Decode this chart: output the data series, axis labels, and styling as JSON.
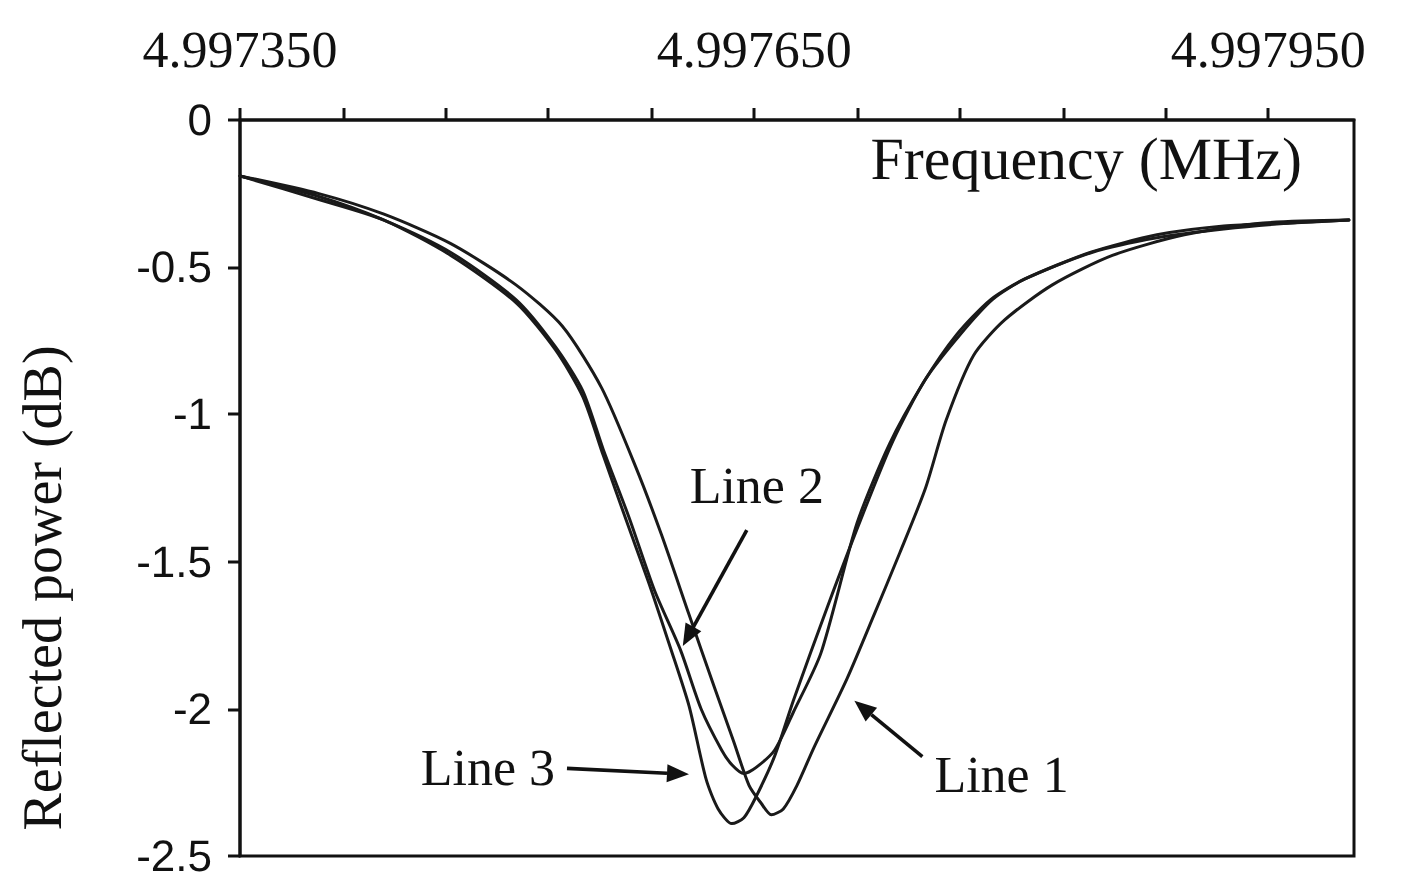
{
  "chart_data": {
    "type": "line",
    "xlabel": "Frequency (MHz)",
    "ylabel": "Reflected power (dB)",
    "xlim": [
      4.99735,
      4.998
    ],
    "xticks": [
      {
        "value": 4.99735,
        "label": "4.997350"
      },
      {
        "value": 4.99741,
        "label": null
      },
      {
        "value": 4.99747,
        "label": null
      },
      {
        "value": 4.99753,
        "label": null
      },
      {
        "value": 4.99759,
        "label": null
      },
      {
        "value": 4.99765,
        "label": "4.997650"
      },
      {
        "value": 4.99771,
        "label": null
      },
      {
        "value": 4.99777,
        "label": null
      },
      {
        "value": 4.99783,
        "label": null
      },
      {
        "value": 4.99789,
        "label": null
      },
      {
        "value": 4.99795,
        "label": "4.997950"
      }
    ],
    "ylim": [
      -2.5,
      0
    ],
    "yticks": [
      0,
      -0.5,
      -1,
      -1.5,
      -2,
      -2.5
    ],
    "line_style": "solid",
    "series": [
      {
        "name": "Line 1",
        "color": "#1a1a1a",
        "x": [
          4.99735,
          4.997396,
          4.997434,
          4.997473,
          4.997511,
          4.997538,
          4.997561,
          4.997581,
          4.997596,
          4.997612,
          4.997627,
          4.997638,
          4.997647,
          4.997654,
          4.99766,
          4.997667,
          4.997675,
          4.997685,
          4.997704,
          4.99772,
          4.997735,
          4.99775,
          4.997762,
          4.997778,
          4.997796,
          4.997824,
          4.997859,
          4.997901,
          4.997947,
          4.997997
        ],
        "values": [
          -0.19,
          -0.25,
          -0.32,
          -0.42,
          -0.56,
          -0.7,
          -0.91,
          -1.18,
          -1.41,
          -1.68,
          -1.93,
          -2.11,
          -2.26,
          -2.32,
          -2.36,
          -2.34,
          -2.26,
          -2.13,
          -1.9,
          -1.68,
          -1.47,
          -1.25,
          -1.02,
          -0.8,
          -0.68,
          -0.56,
          -0.46,
          -0.39,
          -0.35,
          -0.34
        ]
      },
      {
        "name": "Line 2",
        "color": "#1a1a1a",
        "x": [
          4.99735,
          4.997396,
          4.997434,
          4.997473,
          4.997511,
          4.997534,
          4.99755,
          4.997562,
          4.997577,
          4.997592,
          4.997607,
          4.997619,
          4.997631,
          4.997637,
          4.997644,
          4.997651,
          4.997662,
          4.997673,
          4.997689,
          4.99771,
          4.997729,
          4.997749,
          4.997768,
          4.997788,
          4.997808,
          4.997846,
          4.997885,
          4.997924,
          4.997963,
          4.997997
        ],
        "values": [
          -0.19,
          -0.26,
          -0.34,
          -0.45,
          -0.61,
          -0.77,
          -0.92,
          -1.12,
          -1.35,
          -1.6,
          -1.8,
          -2.0,
          -2.14,
          -2.19,
          -2.22,
          -2.2,
          -2.14,
          -2.01,
          -1.81,
          -1.37,
          -1.1,
          -0.89,
          -0.73,
          -0.61,
          -0.54,
          -0.45,
          -0.39,
          -0.36,
          -0.35,
          -0.34
        ]
      },
      {
        "name": "Line 3",
        "color": "#1a1a1a",
        "x": [
          4.99735,
          4.997396,
          4.997434,
          4.997473,
          4.997511,
          4.997534,
          4.99755,
          4.997562,
          4.997576,
          4.997589,
          4.997601,
          4.997612,
          4.997622,
          4.997629,
          4.997637,
          4.997644,
          4.997651,
          4.997662,
          4.997673,
          4.997693,
          4.997712,
          4.997731,
          4.99775,
          4.99777,
          4.997789,
          4.997808,
          4.997847,
          4.997885,
          4.997924,
          4.997963,
          4.997997
        ],
        "values": [
          -0.19,
          -0.27,
          -0.34,
          -0.46,
          -0.62,
          -0.78,
          -0.94,
          -1.14,
          -1.37,
          -1.58,
          -1.79,
          -1.99,
          -2.24,
          -2.34,
          -2.39,
          -2.37,
          -2.3,
          -2.16,
          -1.97,
          -1.65,
          -1.36,
          -1.09,
          -0.88,
          -0.73,
          -0.61,
          -0.54,
          -0.45,
          -0.4,
          -0.37,
          -0.35,
          -0.34
        ]
      }
    ]
  }
}
